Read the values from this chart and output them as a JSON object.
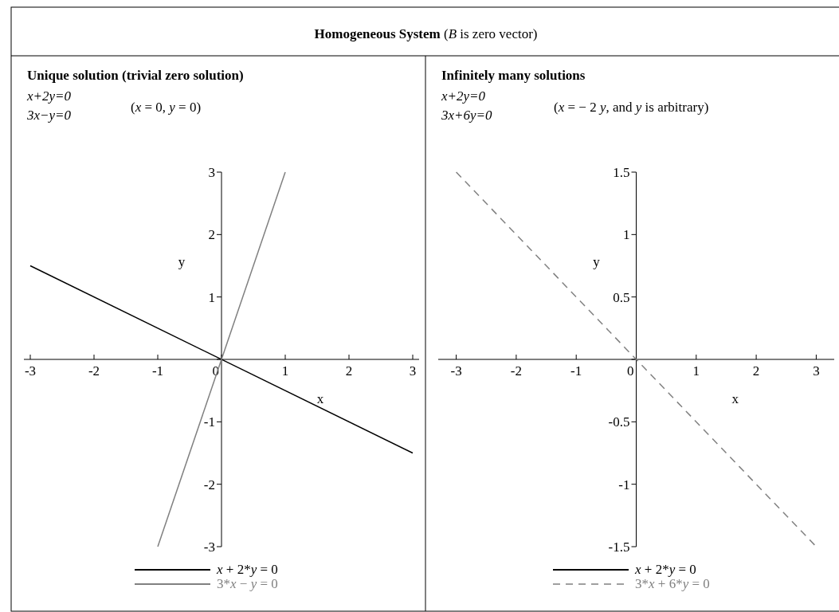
{
  "chart_data": [
    {
      "type": "other",
      "title": "Homogeneous System (B is zero vector)"
    },
    {
      "type": "line",
      "title": "Unique solution (trivial zero solution)",
      "annotations": [
        "x+2y=0",
        "3x−y=0",
        "(x = 0, y = 0)"
      ],
      "xlabel": "x",
      "ylabel": "y",
      "xlim": [
        -3.1,
        3.1
      ],
      "ylim": [
        -3,
        3
      ],
      "xticks": [
        -3,
        -2,
        -1,
        0,
        1,
        2,
        3
      ],
      "yticks": [
        -3,
        -2,
        -1,
        {
          "value": 0,
          "label": null
        },
        1,
        2,
        3
      ],
      "legend": "bottom",
      "grid": false,
      "series": [
        {
          "name": "x + 2*y = 0",
          "color": "#000000",
          "x": [
            -3,
            3
          ],
          "values": [
            1.5,
            -1.5
          ],
          "line_style": "solid"
        },
        {
          "name": "3*x − y = 0",
          "color": "#808080",
          "x": [
            -1,
            1
          ],
          "values": [
            -3,
            3
          ],
          "line_style": "solid"
        }
      ]
    },
    {
      "type": "line",
      "title": "Infinitely many solutions",
      "annotations": [
        "x+2y=0",
        "3x+6y=0",
        "(x = − 2 y, and y is arbitrary)"
      ],
      "xlabel": "x",
      "ylabel": "y",
      "xlim": [
        -3.3,
        3.3
      ],
      "ylim": [
        -1.5,
        1.5
      ],
      "xticks": [
        -3,
        -2,
        -1,
        0,
        1,
        2,
        3
      ],
      "yticks": [
        -1.5,
        -1,
        -0.5,
        {
          "value": 0,
          "label": null
        },
        0.5,
        1,
        1.5
      ],
      "legend": "bottom",
      "grid": false,
      "series": [
        {
          "name": "x + 2*y = 0",
          "color": "#000000",
          "values": [
            null,
            null
          ],
          "line_style": "solid"
        },
        {
          "name": "3*x + 6*y = 0",
          "color": "#808080",
          "x": [
            -3,
            3
          ],
          "values": [
            1.5,
            -1.5
          ],
          "line_style": "dashed"
        }
      ]
    }
  ]
}
